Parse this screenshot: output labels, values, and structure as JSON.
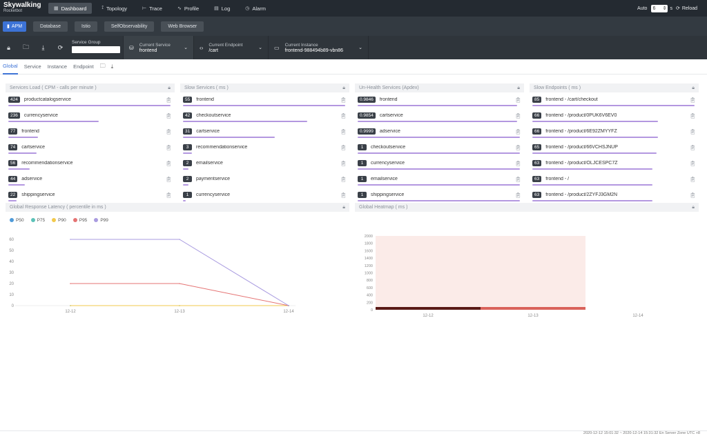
{
  "app": {
    "logo_line1": "Skywalking",
    "logo_line2": "Rocketbot"
  },
  "nav": {
    "items": [
      {
        "label": "Dashboard",
        "icon": "dashboard-icon",
        "active": true
      },
      {
        "label": "Topology",
        "icon": "topology-icon",
        "active": false
      },
      {
        "label": "Trace",
        "icon": "trace-icon",
        "active": false
      },
      {
        "label": "Profile",
        "icon": "profile-icon",
        "active": false
      },
      {
        "label": "Log",
        "icon": "log-icon",
        "active": false
      },
      {
        "label": "Alarm",
        "icon": "alarm-icon",
        "active": false
      }
    ],
    "auto_label": "Auto",
    "auto_value": "6",
    "seconds_unit": "s",
    "reload_label": "Reload"
  },
  "secondary_tabs": [
    {
      "label": "APM",
      "active": true
    },
    {
      "label": "Database",
      "active": false
    },
    {
      "label": "Istio",
      "active": false
    },
    {
      "label": "SelfObservability",
      "active": false
    },
    {
      "label": "Web Browser",
      "active": false
    }
  ],
  "toolbar": {
    "service_group_label": "Service Group",
    "service_group_value": "",
    "current_service_label": "Current Service",
    "current_service_value": "frontend",
    "current_endpoint_label": "Current Endpoint",
    "current_endpoint_value": "/cart",
    "current_instance_label": "Current Instance",
    "current_instance_value": "frontend-988494b89-vbn86"
  },
  "subnav": {
    "tabs": [
      {
        "label": "Global",
        "active": true
      },
      {
        "label": "Service",
        "active": false
      },
      {
        "label": "Instance",
        "active": false
      },
      {
        "label": "Endpoint",
        "active": false
      }
    ]
  },
  "panels": {
    "services_load": {
      "title": "Services Load ( CPM - calls per minute )",
      "rows": [
        {
          "value": "424",
          "name": "productcatalogservice",
          "fill": 1.0
        },
        {
          "value": "236",
          "name": "currencyservice",
          "fill": 0.556
        },
        {
          "value": "77",
          "name": "frontend",
          "fill": 0.182
        },
        {
          "value": "74",
          "name": "cartservice",
          "fill": 0.175
        },
        {
          "value": "56",
          "name": "recommendationservice",
          "fill": 0.132
        },
        {
          "value": "44",
          "name": "adservice",
          "fill": 0.104
        },
        {
          "value": "22",
          "name": "shippingservice",
          "fill": 0.052
        }
      ]
    },
    "slow_services": {
      "title": "Slow Services ( ms )",
      "rows": [
        {
          "value": "55",
          "name": "frontend",
          "fill": 1.0
        },
        {
          "value": "42",
          "name": "checkoutservice",
          "fill": 0.764
        },
        {
          "value": "31",
          "name": "cartservice",
          "fill": 0.564
        },
        {
          "value": "3",
          "name": "recommendationservice",
          "fill": 0.055
        },
        {
          "value": "2",
          "name": "emailservice",
          "fill": 0.036
        },
        {
          "value": "2",
          "name": "paymentservice",
          "fill": 0.036
        },
        {
          "value": "1",
          "name": "currencyservice",
          "fill": 0.018
        }
      ]
    },
    "unhealth_services": {
      "title": "Un-Health Services (Apdex)",
      "rows": [
        {
          "value": "0.9846",
          "name": "frontend",
          "fill": 0.985
        },
        {
          "value": "0.9854",
          "name": "cartservice",
          "fill": 0.985
        },
        {
          "value": "0.9999",
          "name": "adservice",
          "fill": 1.0
        },
        {
          "value": "1",
          "name": "checkoutservice",
          "fill": 1.0
        },
        {
          "value": "1",
          "name": "currencyservice",
          "fill": 1.0
        },
        {
          "value": "1",
          "name": "emailservice",
          "fill": 1.0
        },
        {
          "value": "1",
          "name": "shippingservice",
          "fill": 1.0
        }
      ]
    },
    "slow_endpoints": {
      "title": "Slow Endpoints ( ms )",
      "rows": [
        {
          "value": "85",
          "name": "frontend - /cart/checkout",
          "fill": 1.0
        },
        {
          "value": "66",
          "name": "frontend - /product/0PUK6V6EV0",
          "fill": 0.776
        },
        {
          "value": "66",
          "name": "frontend - /product/6E92ZMYYFZ",
          "fill": 0.776
        },
        {
          "value": "65",
          "name": "frontend - /product/66VCHSJNUP",
          "fill": 0.765
        },
        {
          "value": "63",
          "name": "frontend - /product/OLJCESPC7Z",
          "fill": 0.741
        },
        {
          "value": "63",
          "name": "frontend - /",
          "fill": 0.741
        },
        {
          "value": "63",
          "name": "frontend - /product/2ZYFJ3GM2N",
          "fill": 0.741
        }
      ]
    },
    "latency": {
      "title": "Global Response Latency ( percentile in ms )"
    },
    "heatmap": {
      "title": "Global Heatmap ( ms )"
    }
  },
  "chart_data": [
    {
      "type": "line",
      "title": "Global Response Latency ( percentile in ms )",
      "x": [
        "12-12",
        "12-13",
        "12-14"
      ],
      "series": [
        {
          "name": "P50",
          "color": "#4f9bd9",
          "values": [
            0,
            0,
            0
          ]
        },
        {
          "name": "P75",
          "color": "#5cc2b8",
          "values": [
            0,
            0,
            0
          ]
        },
        {
          "name": "P90",
          "color": "#f2c94c",
          "values": [
            0,
            0,
            0
          ]
        },
        {
          "name": "P95",
          "color": "#e57373",
          "values": [
            20,
            20,
            0
          ]
        },
        {
          "name": "P99",
          "color": "#a99be0",
          "values": [
            60,
            60,
            0
          ]
        }
      ],
      "y_ticks": [
        0,
        10,
        20,
        30,
        40,
        50,
        60
      ],
      "ylim": [
        0,
        65
      ],
      "grid": false,
      "legend": "top-left"
    },
    {
      "type": "heatmap",
      "title": "Global Heatmap ( ms )",
      "x": [
        "12-12",
        "12-13",
        "12-14"
      ],
      "y_ticks": [
        0,
        200,
        400,
        600,
        800,
        1000,
        1200,
        1400,
        1600,
        1800,
        2000
      ],
      "ylim": [
        0,
        2000
      ],
      "cells": [
        {
          "x_start": "12-12",
          "x_end": "12-13",
          "bucket": 0,
          "color": "#5a1a16"
        },
        {
          "x_start": "12-13",
          "x_end": "12-14",
          "bucket": 0,
          "color": "#d9625a"
        }
      ],
      "background_color": "#fbebe8"
    }
  ],
  "footer": {
    "text": "2020-12-12 15:01:32 ~ 2020-12-14 15:31:32   En   Server Zone UTC +8"
  }
}
